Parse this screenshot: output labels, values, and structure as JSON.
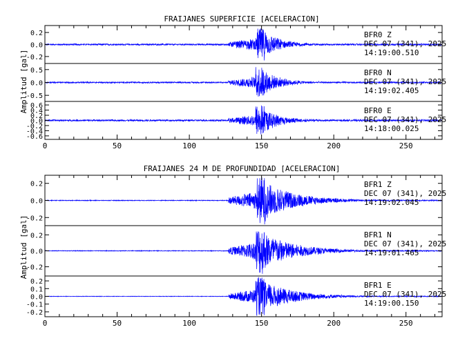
{
  "panels": [
    {
      "title": "FRAIJANES SUPERFICIE [ACELERACION]",
      "ylabel": "Amplitud [gal]",
      "xlim": [
        0,
        275
      ],
      "xticks": [
        0,
        50,
        100,
        150,
        200,
        250
      ],
      "traces": [
        {
          "station": "BFR0",
          "component": "Z",
          "date": "DEC 07 (341), 2025",
          "time": "14:19:00.510",
          "yticks": [
            "0.2",
            "0.0",
            "-0.2"
          ],
          "ylim": [
            -0.3,
            0.3
          ],
          "noise": 0.012,
          "peak": 0.27
        },
        {
          "station": "BFR0",
          "component": "N",
          "date": "DEC 07 (341), 2025",
          "time": "14:19:02.405",
          "yticks": [
            "0.5",
            "0.0",
            "-0.5"
          ],
          "ylim": [
            -0.7,
            0.7
          ],
          "noise": 0.025,
          "peak": 0.6
        },
        {
          "station": "BFR0",
          "component": "E",
          "date": "DEC 07 (341), 2025",
          "time": "14:18:00.025",
          "yticks": [
            "0.6",
            "0.4",
            "0.2",
            "0.0",
            "-0.2",
            "-0.4",
            "-0.6"
          ],
          "ylim": [
            -0.7,
            0.7
          ],
          "noise": 0.03,
          "peak": 0.6
        }
      ]
    },
    {
      "title": "FRAIJANES 24 M DE PROFUNDIDAD [ACELERACION]",
      "ylabel": "Amplitud [gal]",
      "xlim": [
        0,
        275
      ],
      "xticks": [
        0,
        50,
        100,
        150,
        200,
        250
      ],
      "traces": [
        {
          "station": "BFR1",
          "component": "Z",
          "date": "DEC 07 (341), 2025",
          "time": "14:19:02.045",
          "yticks": [
            "0.2",
            "0.0",
            "-0.2"
          ],
          "ylim": [
            -0.28,
            0.28
          ],
          "noise": 0.004,
          "peak": 0.28
        },
        {
          "station": "BFR1",
          "component": "N",
          "date": "DEC 07 (341), 2025",
          "time": "14:19:01.465",
          "yticks": [
            "0.2",
            "0.0",
            "-0.2"
          ],
          "ylim": [
            -0.3,
            0.3
          ],
          "noise": 0.004,
          "peak": 0.3
        },
        {
          "station": "BFR1",
          "component": "E",
          "date": "DEC 07 (341), 2025",
          "time": "14:19:00.150",
          "yticks": [
            "0.2",
            "0.1",
            "0.0",
            "-0.1",
            "-0.2"
          ],
          "ylim": [
            -0.25,
            0.25
          ],
          "noise": 0.003,
          "peak": 0.25
        }
      ]
    }
  ],
  "chart_data": [
    {
      "type": "line",
      "title": "FRAIJANES SUPERFICIE [ACELERACION]",
      "ylabel": "Amplitud [gal]",
      "xlim": [
        0,
        275
      ],
      "series": [
        {
          "name": "BFR0 Z",
          "ylim": [
            -0.3,
            0.3
          ],
          "event_onset": 127,
          "event_peak": 149,
          "event_end": 190
        },
        {
          "name": "BFR0 N",
          "ylim": [
            -0.7,
            0.7
          ],
          "event_onset": 127,
          "event_peak": 148,
          "event_end": 200
        },
        {
          "name": "BFR0 E",
          "ylim": [
            -0.7,
            0.7
          ],
          "event_onset": 127,
          "event_peak": 148,
          "event_end": 200
        }
      ],
      "line_color": "#0000ff"
    },
    {
      "type": "line",
      "title": "FRAIJANES 24 M DE PROFUNDIDAD [ACELERACION]",
      "ylabel": "Amplitud [gal]",
      "xlim": [
        0,
        275
      ],
      "series": [
        {
          "name": "BFR1 Z",
          "ylim": [
            -0.28,
            0.28
          ],
          "event_onset": 127,
          "event_peak": 149,
          "event_end": 230
        },
        {
          "name": "BFR1 N",
          "ylim": [
            -0.3,
            0.3
          ],
          "event_onset": 127,
          "event_peak": 148,
          "event_end": 240
        },
        {
          "name": "BFR1 E",
          "ylim": [
            -0.25,
            0.25
          ],
          "event_onset": 127,
          "event_peak": 148,
          "event_end": 240
        }
      ],
      "line_color": "#0000ff"
    }
  ]
}
